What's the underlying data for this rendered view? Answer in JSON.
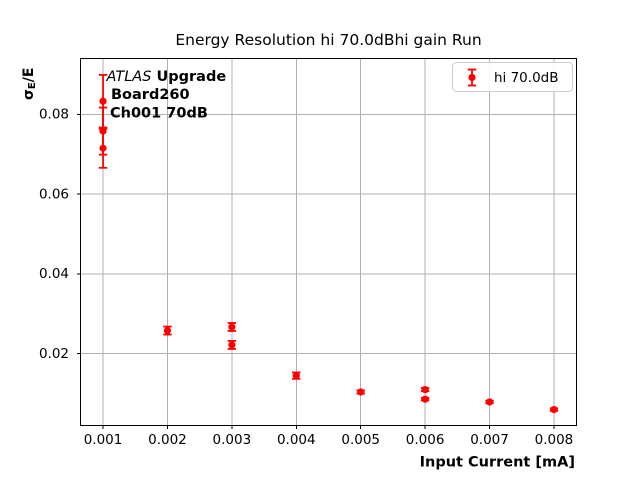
{
  "chart_data": {
    "type": "scatter",
    "title": "Energy Resolution hi 70.0dBhi gain Run",
    "xlabel": "Input Current [mA]",
    "ylabel_parts": [
      {
        "text": "σ",
        "style": "bold"
      },
      {
        "text": "E",
        "style": "bold-subscript"
      },
      {
        "text": "/E",
        "style": "bold"
      }
    ],
    "xlim": [
      0.00065,
      0.00835
    ],
    "ylim": [
      0.002,
      0.094
    ],
    "grid": true,
    "xticks": [
      {
        "value": 0.001,
        "label": "0.001"
      },
      {
        "value": 0.002,
        "label": "0.002"
      },
      {
        "value": 0.003,
        "label": "0.003"
      },
      {
        "value": 0.004,
        "label": "0.004"
      },
      {
        "value": 0.005,
        "label": "0.005"
      },
      {
        "value": 0.006,
        "label": "0.006"
      },
      {
        "value": 0.007,
        "label": "0.007"
      },
      {
        "value": 0.008,
        "label": "0.008"
      }
    ],
    "yticks": [
      {
        "value": 0.02,
        "label": "0.02"
      },
      {
        "value": 0.04,
        "label": "0.04"
      },
      {
        "value": 0.06,
        "label": "0.06"
      },
      {
        "value": 0.08,
        "label": "0.08"
      }
    ],
    "legend": {
      "position": "upper right",
      "label": "hi 70.0dB",
      "marker": "errorbar-dot",
      "color": "#ff0000"
    },
    "series": [
      {
        "name": "hi 70.0dB",
        "color": "#ff0000",
        "marker": "circle",
        "points": [
          {
            "x": 0.001,
            "y": 0.0833,
            "yerr": 0.0066
          },
          {
            "x": 0.001,
            "y": 0.0758,
            "yerr": 0.0059
          },
          {
            "x": 0.001,
            "y": 0.0715,
            "yerr": 0.0049
          },
          {
            "x": 0.002,
            "y": 0.0258,
            "yerr": 0.001
          },
          {
            "x": 0.003,
            "y": 0.0267,
            "yerr": 0.001
          },
          {
            "x": 0.003,
            "y": 0.0222,
            "yerr": 0.001
          },
          {
            "x": 0.004,
            "y": 0.0145,
            "yerr": 0.0008
          },
          {
            "x": 0.005,
            "y": 0.0104,
            "yerr": 0.0004
          },
          {
            "x": 0.006,
            "y": 0.011,
            "yerr": 0.0004
          },
          {
            "x": 0.006,
            "y": 0.0086,
            "yerr": 0.0003
          },
          {
            "x": 0.007,
            "y": 0.0079,
            "yerr": 0.0003
          },
          {
            "x": 0.008,
            "y": 0.006,
            "yerr": 0.0003
          }
        ]
      }
    ],
    "annotation": {
      "lines": [
        {
          "segments": [
            {
              "text": "ATLAS",
              "style": "italic"
            },
            {
              "text": " Upgrade",
              "style": "bold"
            }
          ]
        },
        {
          "segments": [
            {
              "text": "Board260",
              "style": "bold"
            }
          ]
        },
        {
          "segments": [
            {
              "text": "Ch001 70dB",
              "style": "bold"
            }
          ]
        }
      ]
    },
    "colors": {
      "series": "#ff0000",
      "grid": "#b0b0b0",
      "legend_border": "#cccccc",
      "axes": "#000000",
      "text": "#000000",
      "background": "#ffffff"
    }
  }
}
